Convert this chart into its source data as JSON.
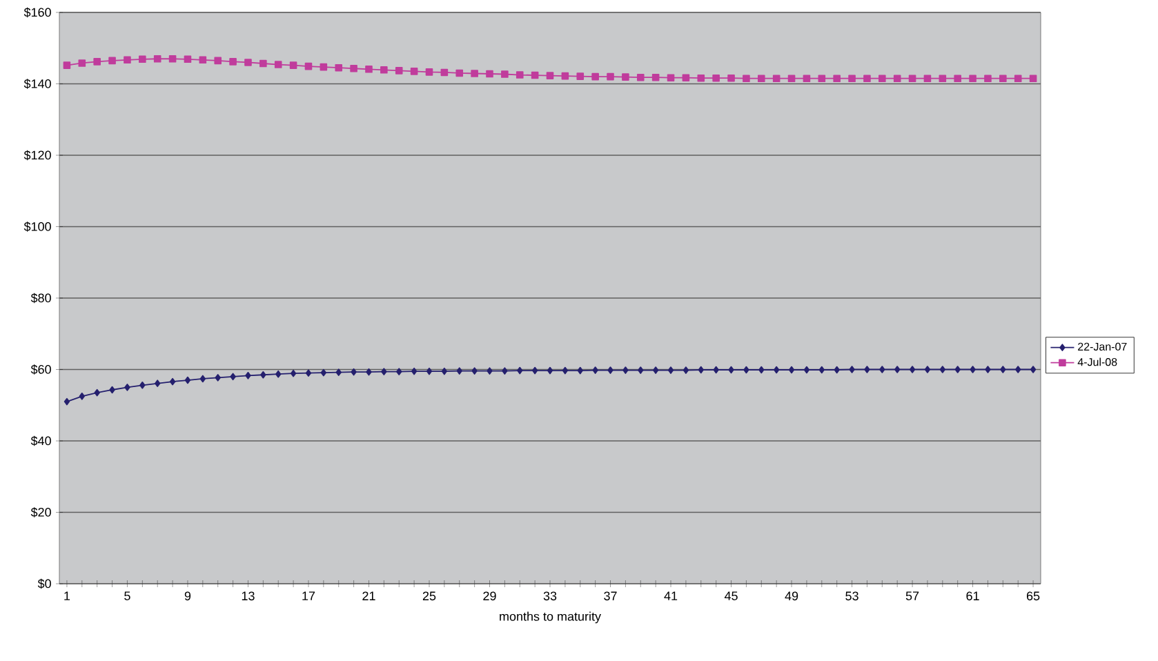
{
  "chart_data": {
    "type": "line",
    "xlabel": "months to maturity",
    "categories": [
      "1",
      null,
      null,
      null,
      "5",
      null,
      null,
      null,
      "9",
      null,
      null,
      null,
      "13",
      null,
      null,
      null,
      "17",
      null,
      null,
      null,
      "21",
      null,
      null,
      null,
      "25",
      null,
      null,
      null,
      "29",
      null,
      null,
      null,
      "33",
      null,
      null,
      null,
      "37",
      null,
      null,
      null,
      "41",
      null,
      null,
      null,
      "45",
      null,
      null,
      null,
      "49",
      null,
      null,
      null,
      "53",
      null,
      null,
      null,
      "57",
      null,
      null,
      null,
      "61",
      null,
      null,
      null,
      "65"
    ],
    "series": [
      {
        "name": "22-Jan-07",
        "color": "#25206e",
        "marker": "diamond",
        "values": [
          51.0,
          52.5,
          53.5,
          54.3,
          55.0,
          55.6,
          56.1,
          56.6,
          57.0,
          57.4,
          57.7,
          58.0,
          58.3,
          58.5,
          58.7,
          58.9,
          59.0,
          59.1,
          59.2,
          59.3,
          59.3,
          59.4,
          59.4,
          59.5,
          59.5,
          59.5,
          59.6,
          59.6,
          59.6,
          59.6,
          59.7,
          59.7,
          59.7,
          59.7,
          59.7,
          59.8,
          59.8,
          59.8,
          59.8,
          59.8,
          59.8,
          59.8,
          59.9,
          59.9,
          59.9,
          59.9,
          59.9,
          59.9,
          59.9,
          59.9,
          59.9,
          59.9,
          60.0,
          60.0,
          60.0,
          60.0,
          60.0,
          60.0,
          60.0,
          60.0,
          60.0,
          60.0,
          60.0,
          60.0,
          60.0
        ]
      },
      {
        "name": "4-Jul-08",
        "color": "#c03c9c",
        "marker": "square",
        "values": [
          145.2,
          145.8,
          146.2,
          146.5,
          146.7,
          146.9,
          147.0,
          147.0,
          146.9,
          146.7,
          146.5,
          146.2,
          146.0,
          145.7,
          145.4,
          145.2,
          144.9,
          144.7,
          144.5,
          144.3,
          144.1,
          143.9,
          143.7,
          143.5,
          143.3,
          143.2,
          143.0,
          142.9,
          142.8,
          142.7,
          142.5,
          142.4,
          142.3,
          142.2,
          142.1,
          142.0,
          142.0,
          141.9,
          141.8,
          141.8,
          141.7,
          141.7,
          141.6,
          141.6,
          141.6,
          141.5,
          141.5,
          141.5,
          141.5,
          141.5,
          141.5,
          141.5,
          141.5,
          141.5,
          141.5,
          141.5,
          141.5,
          141.5,
          141.5,
          141.5,
          141.5,
          141.5,
          141.5,
          141.5,
          141.5
        ]
      }
    ],
    "ylim": [
      0,
      160
    ],
    "yticks": [
      {
        "value": 0,
        "label": "$0"
      },
      {
        "value": 20,
        "label": "$20"
      },
      {
        "value": 40,
        "label": "$40"
      },
      {
        "value": 60,
        "label": "$60"
      },
      {
        "value": 80,
        "label": "$80"
      },
      {
        "value": 100,
        "label": "$100"
      },
      {
        "value": 120,
        "label": "$120"
      },
      {
        "value": 140,
        "label": "$140"
      },
      {
        "value": 160,
        "label": "$160"
      }
    ],
    "grid": "y",
    "legend": "right"
  }
}
